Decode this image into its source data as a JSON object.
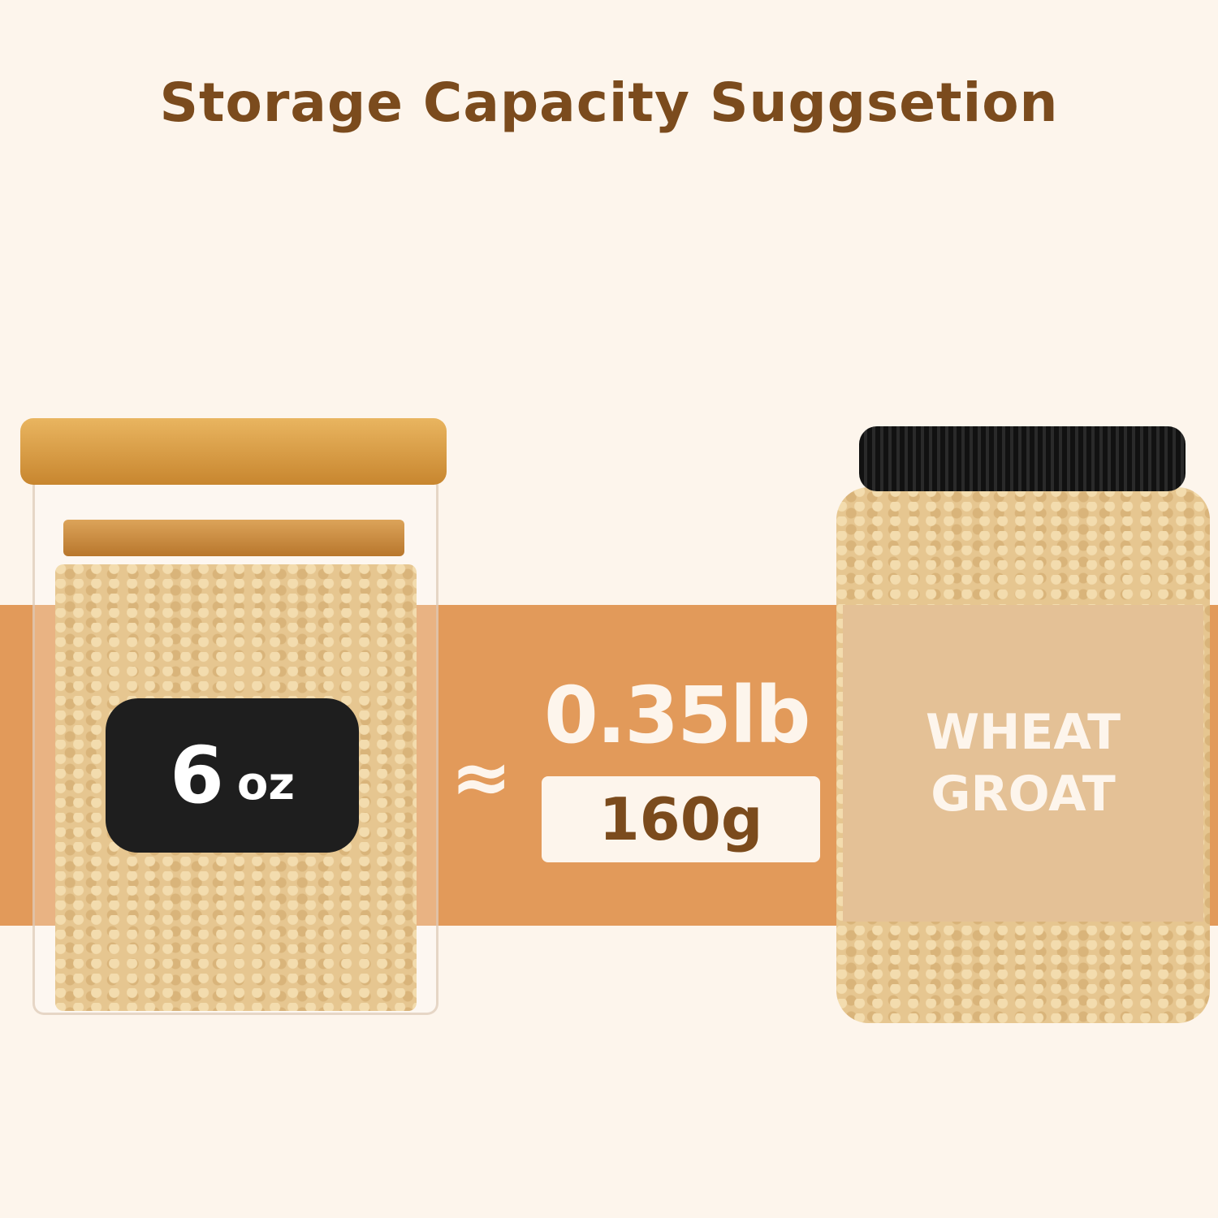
{
  "title": "Storage Capacity Suggsetion",
  "jar_label": {
    "number": "6",
    "unit": "oz"
  },
  "approx_symbol": "≈",
  "weight_lb": "0.35lb",
  "weight_g": "160g",
  "product_label": {
    "line1": "WHEAT",
    "line2": "GROAT"
  },
  "colors": {
    "background": "#fdf5ec",
    "band": "#e29a5a",
    "title": "#7b4b1d",
    "label": "#e4c196"
  }
}
